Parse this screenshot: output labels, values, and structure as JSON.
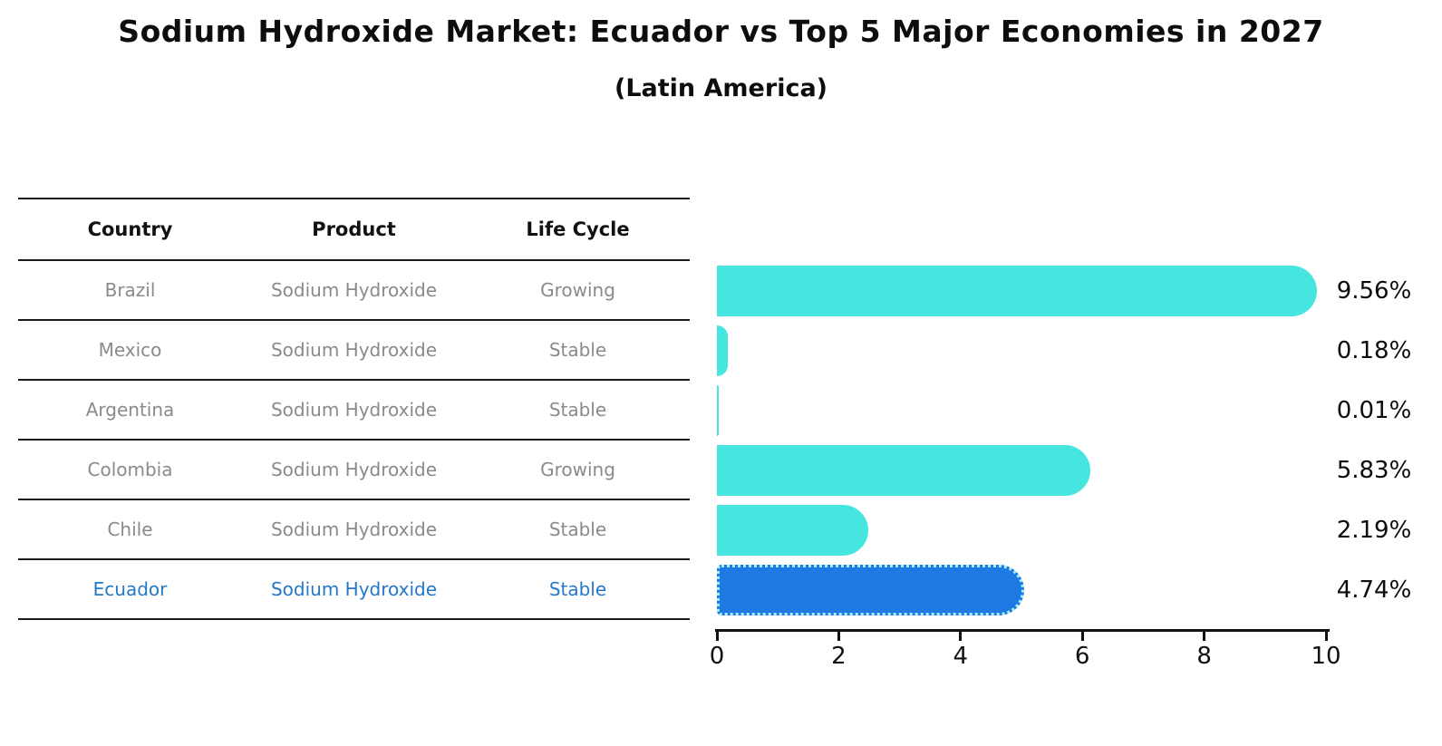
{
  "title": "Sodium Hydroxide Market: Ecuador vs Top 5 Major Economies in 2027",
  "subtitle": "(Latin America)",
  "table": {
    "headers": [
      "Country",
      "Product",
      "Life Cycle"
    ],
    "rows": [
      {
        "country": "Brazil",
        "product": "Sodium Hydroxide",
        "life_cycle": "Growing",
        "highlight": false
      },
      {
        "country": "Mexico",
        "product": "Sodium Hydroxide",
        "life_cycle": "Stable",
        "highlight": false
      },
      {
        "country": "Argentina",
        "product": "Sodium Hydroxide",
        "life_cycle": "Stable",
        "highlight": false
      },
      {
        "country": "Colombia",
        "product": "Sodium Hydroxide",
        "life_cycle": "Growing",
        "highlight": false
      },
      {
        "country": "Chile",
        "product": "Sodium Hydroxide",
        "life_cycle": "Stable",
        "highlight": false
      },
      {
        "country": "Ecuador",
        "product": "Sodium Hydroxide",
        "life_cycle": "Stable",
        "highlight": true
      }
    ]
  },
  "chart_data": {
    "type": "bar",
    "orientation": "horizontal",
    "categories": [
      "Brazil",
      "Mexico",
      "Argentina",
      "Colombia",
      "Chile",
      "Ecuador"
    ],
    "values": [
      9.56,
      0.18,
      0.01,
      5.83,
      2.19,
      4.74
    ],
    "value_labels": [
      "9.56%",
      "0.18%",
      "0.01%",
      "5.83%",
      "2.19%",
      "4.74%"
    ],
    "highlight_index": 5,
    "xlabel": "",
    "ylabel": "",
    "xlim": [
      0,
      10
    ],
    "x_ticks": [
      0,
      2,
      4,
      6,
      8,
      10
    ],
    "grid": false,
    "legend": false
  },
  "colors": {
    "bar": "#46e5e0",
    "highlight_bar": "#1f79e3",
    "highlight_bar_edge": "#a9f0f2",
    "highlight_text": "#2478c8",
    "row_text": "#8a8a8a",
    "header_text": "#111111",
    "axis": "#111111"
  }
}
